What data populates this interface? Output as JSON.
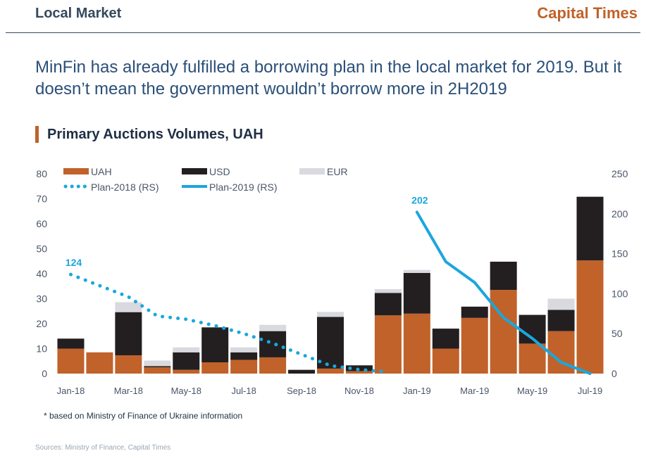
{
  "header": {
    "section": "Local Market",
    "brand": "Capital Times"
  },
  "headline": "MinFin has already fulfilled a borrowing plan in the local market for 2019. But it doesn’t mean the government wouldn’t borrow more in 2H2019",
  "chart_title": "Primary Auctions Volumes, UAH",
  "footnote": "* based on Ministry of Finance of Ukraine information",
  "source": "Sources: Ministry of Finance, Capital Times",
  "colors": {
    "uah": "#c0622a",
    "usd": "#231f20",
    "eur": "#d9d9e0",
    "plan": "#1aa7dd",
    "accent": "#c0622a"
  },
  "chart_data": {
    "type": "bar",
    "stacked": true,
    "categories": [
      "Jan-18",
      "Feb-18",
      "Mar-18",
      "Apr-18",
      "May-18",
      "Jun-18",
      "Jul-18",
      "Aug-18",
      "Sep-18",
      "Oct-18",
      "Nov-18",
      "Dec-18",
      "Jan-19",
      "Feb-19",
      "Mar-19",
      "Apr-19",
      "May-19",
      "Jun-19",
      "Jul-19"
    ],
    "x_tick_labels": [
      "Jan-18",
      "Mar-18",
      "May-18",
      "Jul-18",
      "Sep-18",
      "Nov-18",
      "Jan-19",
      "Mar-19",
      "May-19",
      "Jul-19"
    ],
    "ylim_left": [
      0,
      80
    ],
    "yticks_left": [
      0,
      10,
      20,
      30,
      40,
      50,
      60,
      70,
      80
    ],
    "ylim_right": [
      0,
      250
    ],
    "yticks_right": [
      0,
      50,
      100,
      150,
      200,
      250
    ],
    "series": [
      {
        "name": "UAH",
        "values": [
          10,
          8.5,
          7.3,
          2.5,
          1.5,
          4.5,
          5.5,
          6.5,
          0,
          2,
          1,
          23.3,
          24,
          10,
          22.3,
          33.5,
          12,
          17,
          45.3
        ]
      },
      {
        "name": "USD",
        "values": [
          4,
          0,
          17.3,
          0.5,
          7,
          14,
          3,
          10.5,
          1.5,
          20.7,
          2.3,
          9,
          16.3,
          8,
          4.5,
          11.3,
          11.5,
          8.5,
          25.5
        ]
      },
      {
        "name": "EUR",
        "values": [
          0,
          0,
          4,
          2.2,
          2,
          0,
          2,
          2.5,
          0,
          2,
          0,
          1.5,
          1.2,
          0,
          0,
          0,
          0,
          4.5,
          0
        ]
      }
    ],
    "lines": [
      {
        "name": "Plan-2018 (RS)",
        "style": "dotted",
        "axis": "right",
        "values": [
          124,
          110,
          96,
          72,
          68,
          60,
          50,
          38,
          24,
          10,
          5,
          2
        ]
      },
      {
        "name": "Plan-2019 (RS)",
        "style": "solid",
        "axis": "right",
        "values": [
          null,
          null,
          null,
          null,
          null,
          null,
          null,
          null,
          null,
          null,
          null,
          null,
          202,
          140,
          114,
          70,
          44,
          14,
          0
        ]
      }
    ],
    "annotations": [
      {
        "text": "124",
        "series": "Plan-2018 (RS)",
        "category": "Jan-18"
      },
      {
        "text": "202",
        "series": "Plan-2019 (RS)",
        "category": "Jan-19"
      }
    ],
    "legend": [
      {
        "label": "UAH",
        "kind": "swatch",
        "color": "#c0622a"
      },
      {
        "label": "USD",
        "kind": "swatch",
        "color": "#231f20"
      },
      {
        "label": "EUR",
        "kind": "swatch",
        "color": "#d9d9e0"
      },
      {
        "label": "Plan-2018 (RS)",
        "kind": "dotted",
        "color": "#1aa7dd"
      },
      {
        "label": "Plan-2019 (RS)",
        "kind": "solid",
        "color": "#1aa7dd"
      }
    ],
    "legend_position": "top-left",
    "grid": false
  }
}
